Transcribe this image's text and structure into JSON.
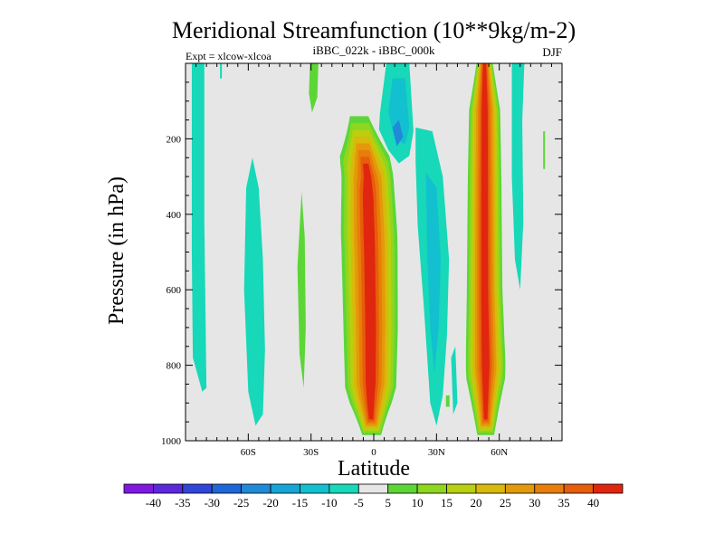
{
  "chart_data": {
    "type": "heatmap",
    "title": "Meridional Streamfunction (10**9kg/m-2)",
    "subtitle": "iBBC_022k - iBBC_000k",
    "left_annotation": "Expt = xlcow-xlcoa",
    "right_annotation": "DJF",
    "xlabel": "Latitude",
    "ylabel": "Pressure (in hPa)",
    "xlim": [
      -90,
      90
    ],
    "ylim": [
      1000,
      0
    ],
    "x_ticks": [
      {
        "value": -60,
        "label": "60S"
      },
      {
        "value": -30,
        "label": "30S"
      },
      {
        "value": 0,
        "label": "0"
      },
      {
        "value": 30,
        "label": "30N"
      },
      {
        "value": 60,
        "label": "60N"
      }
    ],
    "y_ticks": [
      {
        "value": 200,
        "label": "200"
      },
      {
        "value": 400,
        "label": "400"
      },
      {
        "value": 600,
        "label": "600"
      },
      {
        "value": 800,
        "label": "800"
      },
      {
        "value": 1000,
        "label": "1000"
      }
    ],
    "colorbar": {
      "colors": [
        "#7f18e0",
        "#5b28dc",
        "#2f46d8",
        "#1f67d8",
        "#1f8ad8",
        "#16a5d6",
        "#12c0d0",
        "#17d8b8",
        "#e6e6e6",
        "#5cd637",
        "#8fd61e",
        "#b8d00f",
        "#d9b90a",
        "#e39a0a",
        "#e87d0a",
        "#e65d0a",
        "#e0260e"
      ],
      "labels": [
        "-40",
        "-35",
        "-30",
        "-25",
        "-20",
        "-15",
        "-10",
        "-5",
        "5",
        "10",
        "15",
        "20",
        "25",
        "30",
        "35",
        "40"
      ]
    },
    "features": [
      {
        "name": "southern-polar-column",
        "lat": [
          -88,
          -80
        ],
        "p": [
          0,
          870
        ],
        "level": -5
      },
      {
        "name": "southern-midlat-band",
        "lat": [
          -63,
          -52
        ],
        "p": [
          260,
          960
        ],
        "level": -5
      },
      {
        "name": "southern-subtropical-band",
        "lat": [
          -36,
          -33
        ],
        "p": [
          340,
          860
        ],
        "level": 5
      },
      {
        "name": "southern-jet-band",
        "lat": [
          -30,
          -24
        ],
        "p": [
          0,
          120
        ],
        "level": 5
      },
      {
        "name": "tropical-positive-cell",
        "lat": [
          -18,
          8
        ],
        "p": [
          140,
          985
        ],
        "peak": 42
      },
      {
        "name": "tropical-negative-core",
        "lat": [
          5,
          18
        ],
        "p": [
          60,
          200
        ],
        "peak": -20
      },
      {
        "name": "northern-negative-band",
        "lat": [
          20,
          38
        ],
        "p": [
          170,
          960
        ],
        "peak": -18
      },
      {
        "name": "northern-positive-cell",
        "lat": [
          43,
          63
        ],
        "p": [
          0,
          985
        ],
        "peak": 42
      },
      {
        "name": "arctic-negative-column",
        "lat": [
          65,
          73
        ],
        "p": [
          0,
          600
        ],
        "level": -10
      }
    ]
  }
}
